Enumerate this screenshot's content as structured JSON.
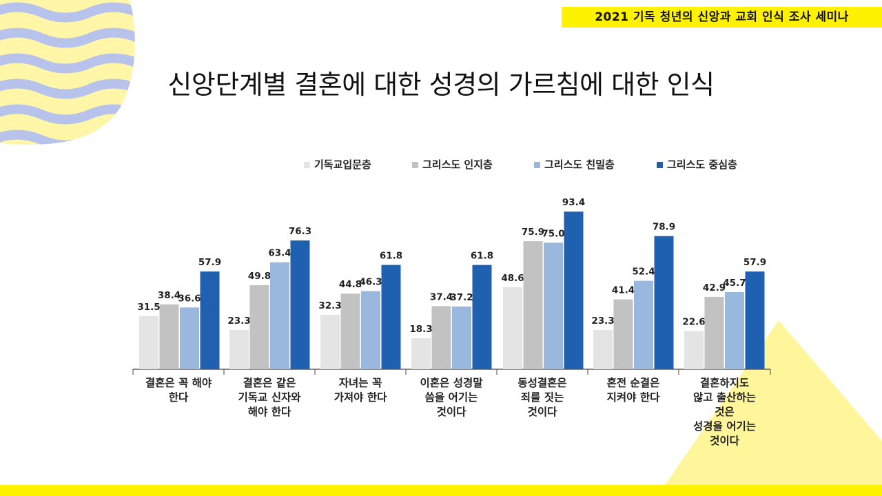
{
  "header": {
    "seminar_title": "2021 기독 청년의 신앙과 교회 인식 조사 세미나",
    "page_title": "신앙단계별 결혼에 대한 성경의 가르침에 대한 인식"
  },
  "colors": {
    "banner_yellow": "#fff200",
    "wave_blue": "#b8c3ec",
    "wave_yellow": "#fff6a8",
    "triangle_yellow": "#fff59a"
  },
  "chart_data": {
    "type": "bar",
    "title": "",
    "categories": [
      [
        "결혼은 꼭 해야",
        "한다"
      ],
      [
        "결혼은 같은",
        "기독교 신자와",
        "해야 한다"
      ],
      [
        "자녀는 꼭",
        "가져야 한다"
      ],
      [
        "이혼은 성경말",
        "씀을 어기는",
        "것이다"
      ],
      [
        "동성결혼은",
        "죄를 짓는",
        "것이다"
      ],
      [
        "혼전 순결은",
        "지켜야 한다"
      ],
      [
        "결혼하지도",
        "않고 출산하는",
        "것은",
        "성경을 어기는",
        "것이다"
      ]
    ],
    "series": [
      {
        "name": "기독교입문층",
        "color": "#e4e4e4",
        "values": [
          31.5,
          23.3,
          32.3,
          18.3,
          48.6,
          23.3,
          22.6
        ]
      },
      {
        "name": "그리스도 인지층",
        "color": "#c2c2c2",
        "values": [
          38.4,
          49.8,
          44.8,
          37.4,
          75.9,
          41.4,
          42.9
        ]
      },
      {
        "name": "그리스도 친밀층",
        "color": "#9ab7de",
        "values": [
          36.6,
          63.4,
          46.3,
          37.2,
          75.0,
          52.4,
          45.7
        ]
      },
      {
        "name": "그리스도 중심층",
        "color": "#2060b0",
        "values": [
          57.9,
          76.3,
          61.8,
          61.8,
          93.4,
          78.9,
          57.9
        ]
      }
    ],
    "ylim": [
      0,
      100
    ],
    "legend_position": "top-right",
    "grid": false
  }
}
